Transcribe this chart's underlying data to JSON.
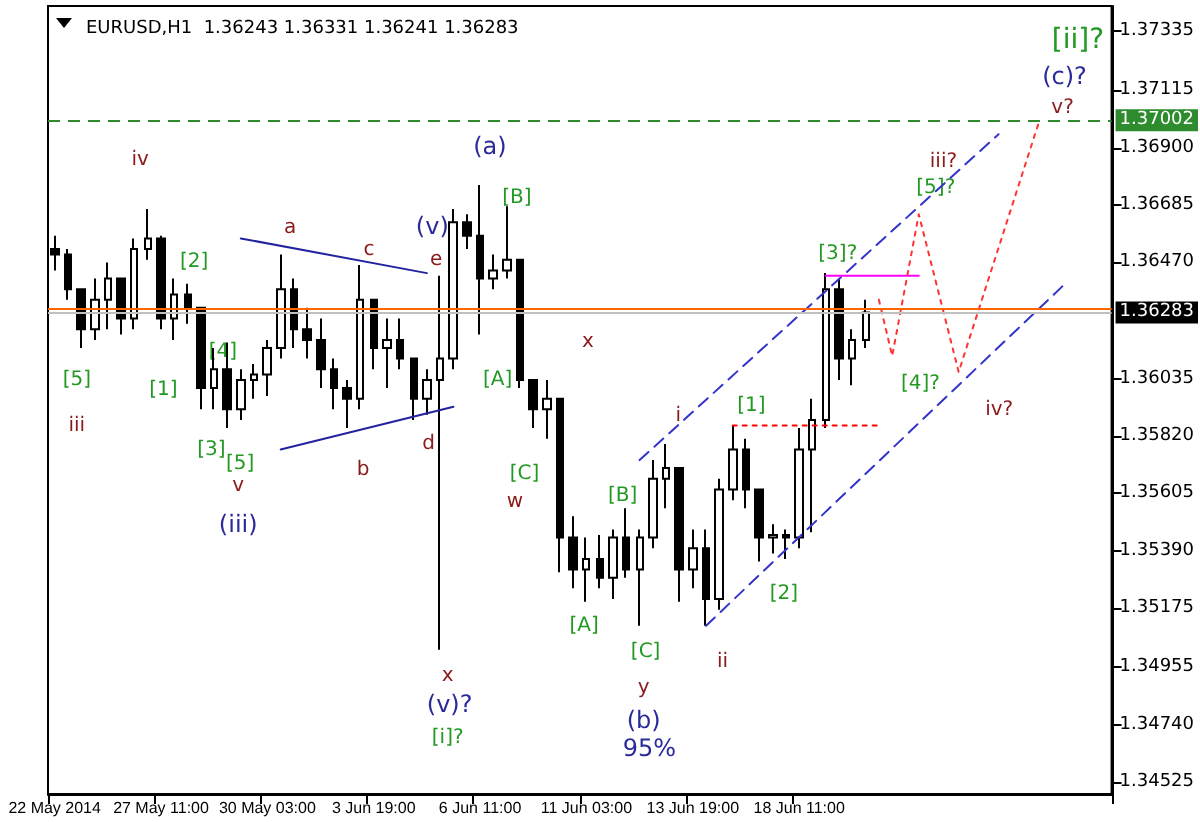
{
  "chart_data": {
    "type": "candlestick",
    "title": "EURUSD,H1  1.36243 1.36331 1.36241 1.36283",
    "categories": [
      "22 May 2014",
      null,
      null,
      null,
      null,
      null,
      null,
      null,
      "27 May 11:00",
      null,
      null,
      null,
      null,
      null,
      null,
      null,
      "30 May 03:00",
      null,
      null,
      null,
      null,
      null,
      null,
      null,
      "3 Jun 19:00",
      null,
      null,
      null,
      null,
      null,
      null,
      null,
      "6 Jun 11:00",
      null,
      null,
      null,
      null,
      null,
      null,
      null,
      "11 Jun 03:00",
      null,
      null,
      null,
      null,
      null,
      null,
      null,
      "13 Jun 19:00",
      null,
      null,
      null,
      null,
      null,
      null,
      null,
      "18 Jun 11:00",
      null,
      null,
      null,
      null,
      null,
      null,
      null,
      null,
      null,
      null,
      null,
      null,
      null,
      null,
      null,
      null,
      null,
      null,
      null,
      null,
      null,
      null,
      null
    ],
    "series": [
      {
        "type": "candlestick",
        "color": "#000000",
        "ohlc": [
          [
            1.3652,
            1.3657,
            1.3644,
            1.365
          ],
          [
            1.365,
            1.3652,
            1.3633,
            1.3637
          ],
          [
            1.3637,
            1.3637,
            1.3615,
            1.3622
          ],
          [
            1.3622,
            1.3641,
            1.3618,
            1.3633
          ],
          [
            1.3633,
            1.3647,
            1.3622,
            1.3641
          ],
          [
            1.3641,
            1.3641,
            1.362,
            1.3626
          ],
          [
            1.3626,
            1.3656,
            1.3622,
            1.3652
          ],
          [
            1.3652,
            1.3667,
            1.3648,
            1.3656
          ],
          [
            1.3656,
            1.3657,
            1.3622,
            1.3626
          ],
          [
            1.3626,
            1.3641,
            1.3618,
            1.3635
          ],
          [
            1.3635,
            1.3639,
            1.3624,
            1.363
          ],
          [
            1.363,
            1.363,
            1.3592,
            1.36
          ],
          [
            1.36,
            1.3615,
            1.3592,
            1.3607
          ],
          [
            1.3607,
            1.3617,
            1.3585,
            1.3592
          ],
          [
            1.3592,
            1.3607,
            1.3588,
            1.3603
          ],
          [
            1.3603,
            1.3609,
            1.3596,
            1.3605
          ],
          [
            1.3605,
            1.3618,
            1.3597,
            1.3615
          ],
          [
            1.3615,
            1.365,
            1.3611,
            1.3637
          ],
          [
            1.3637,
            1.3641,
            1.3615,
            1.3622
          ],
          [
            1.3622,
            1.363,
            1.3611,
            1.3618
          ],
          [
            1.3618,
            1.3626,
            1.36,
            1.3607
          ],
          [
            1.3607,
            1.3611,
            1.3592,
            1.36
          ],
          [
            1.36,
            1.3603,
            1.3585,
            1.3596
          ],
          [
            1.3596,
            1.3646,
            1.3592,
            1.3633
          ],
          [
            1.3633,
            1.3633,
            1.3607,
            1.3615
          ],
          [
            1.3615,
            1.3626,
            1.36,
            1.3618
          ],
          [
            1.3618,
            1.3626,
            1.3607,
            1.3611
          ],
          [
            1.3611,
            1.3611,
            1.3588,
            1.3596
          ],
          [
            1.3596,
            1.3607,
            1.359,
            1.3603
          ],
          [
            1.3603,
            1.3642,
            1.3502,
            1.3611
          ],
          [
            1.3611,
            1.3667,
            1.3607,
            1.3662
          ],
          [
            1.3662,
            1.3665,
            1.3652,
            1.3657
          ],
          [
            1.3657,
            1.3676,
            1.362,
            1.3641
          ],
          [
            1.3641,
            1.365,
            1.3637,
            1.3644
          ],
          [
            1.3644,
            1.3668,
            1.3641,
            1.3648
          ],
          [
            1.3648,
            1.3648,
            1.36,
            1.3603
          ],
          [
            1.3603,
            1.3603,
            1.3585,
            1.3592
          ],
          [
            1.3592,
            1.3603,
            1.3581,
            1.3596
          ],
          [
            1.3596,
            1.3596,
            1.3531,
            1.3544
          ],
          [
            1.3544,
            1.3552,
            1.3525,
            1.3532
          ],
          [
            1.3532,
            1.3544,
            1.352,
            1.3536
          ],
          [
            1.3536,
            1.3545,
            1.3525,
            1.3529
          ],
          [
            1.3529,
            1.3547,
            1.3521,
            1.3544
          ],
          [
            1.3544,
            1.3555,
            1.3529,
            1.3532
          ],
          [
            1.3532,
            1.3547,
            1.3511,
            1.3544
          ],
          [
            1.3544,
            1.3573,
            1.354,
            1.3566
          ],
          [
            1.3566,
            1.3579,
            1.3555,
            1.357
          ],
          [
            1.357,
            1.357,
            1.352,
            1.3532
          ],
          [
            1.3532,
            1.3547,
            1.3525,
            1.354
          ],
          [
            1.354,
            1.3547,
            1.3511,
            1.3521
          ],
          [
            1.3521,
            1.3566,
            1.3517,
            1.3562
          ],
          [
            1.3562,
            1.3586,
            1.3558,
            1.3577
          ],
          [
            1.3577,
            1.3581,
            1.3555,
            1.3562
          ],
          [
            1.3562,
            1.3562,
            1.3535,
            1.3544
          ],
          [
            1.3544,
            1.3549,
            1.3538,
            1.3545
          ],
          [
            1.3545,
            1.3547,
            1.3536,
            1.3544
          ],
          [
            1.3544,
            1.3585,
            1.354,
            1.3577
          ],
          [
            1.3577,
            1.3596,
            1.3546,
            1.3588
          ],
          [
            1.3588,
            1.3643,
            1.3585,
            1.3637
          ],
          [
            1.3637,
            1.3641,
            1.3603,
            1.3611
          ],
          [
            1.3611,
            1.3622,
            1.3601,
            1.3618
          ],
          [
            1.3618,
            1.3633,
            1.3615,
            1.36283
          ],
          null,
          null,
          null,
          null,
          null,
          null,
          null,
          null,
          null,
          null,
          null,
          null,
          null,
          null,
          null,
          null,
          null,
          null
        ]
      },
      {
        "type": "line",
        "color": "#2323a0",
        "line_style": "solid",
        "values": [
          null,
          null,
          null,
          null,
          null,
          null,
          null,
          null,
          null,
          null,
          null,
          null,
          null,
          null,
          1.3656,
          null,
          null,
          null,
          null,
          null,
          null,
          null,
          null,
          null,
          null,
          null,
          null,
          null,
          1.3643,
          null,
          null,
          null,
          null,
          null,
          null,
          null,
          null,
          null,
          null,
          null,
          null,
          null,
          null,
          null,
          null,
          null,
          null,
          null,
          null,
          null,
          null,
          null,
          null,
          null,
          null,
          null,
          null,
          null,
          null,
          null,
          null,
          null,
          null,
          null,
          null,
          null,
          null,
          null,
          null,
          null,
          null,
          null,
          null,
          null,
          null,
          null,
          null,
          null,
          null,
          null
        ]
      },
      {
        "type": "line",
        "color": "#2323a0",
        "line_style": "solid",
        "values": [
          null,
          null,
          null,
          null,
          null,
          null,
          null,
          null,
          null,
          null,
          null,
          null,
          null,
          null,
          null,
          null,
          null,
          1.3577,
          null,
          null,
          null,
          null,
          null,
          null,
          null,
          null,
          null,
          null,
          null,
          null,
          1.3593,
          null,
          null,
          null,
          null,
          null,
          null,
          null,
          null,
          null,
          null,
          null,
          null,
          null,
          null,
          null,
          null,
          null,
          null,
          null,
          null,
          null,
          null,
          null,
          null,
          null,
          null,
          null,
          null,
          null,
          null,
          null,
          null,
          null,
          null,
          null,
          null,
          null,
          null,
          null,
          null,
          null,
          null,
          null,
          null,
          null,
          null,
          null,
          null,
          null
        ]
      },
      {
        "type": "line",
        "color": "#3333cc",
        "line_style": "dashed",
        "values": [
          null,
          null,
          null,
          null,
          null,
          null,
          null,
          null,
          null,
          null,
          null,
          null,
          null,
          null,
          null,
          null,
          null,
          null,
          null,
          null,
          null,
          null,
          null,
          null,
          null,
          null,
          null,
          null,
          null,
          null,
          null,
          null,
          null,
          null,
          null,
          null,
          null,
          null,
          null,
          null,
          null,
          null,
          null,
          null,
          1.3573,
          null,
          null,
          null,
          null,
          null,
          null,
          null,
          null,
          null,
          null,
          null,
          null,
          null,
          null,
          null,
          null,
          null,
          null,
          null,
          null,
          null,
          null,
          null,
          null,
          null,
          null,
          1.3695,
          null,
          null,
          null,
          null,
          null,
          null,
          null,
          null
        ]
      },
      {
        "type": "line",
        "color": "#3333cc",
        "line_style": "dashed",
        "values": [
          null,
          null,
          null,
          null,
          null,
          null,
          null,
          null,
          null,
          null,
          null,
          null,
          null,
          null,
          null,
          null,
          null,
          null,
          null,
          null,
          null,
          null,
          null,
          null,
          null,
          null,
          null,
          null,
          null,
          null,
          null,
          null,
          null,
          null,
          null,
          null,
          null,
          null,
          null,
          null,
          null,
          null,
          null,
          null,
          null,
          null,
          null,
          null,
          null,
          1.3511,
          null,
          null,
          null,
          null,
          null,
          null,
          null,
          null,
          null,
          null,
          null,
          null,
          null,
          null,
          null,
          null,
          null,
          null,
          null,
          null,
          null,
          null,
          null,
          null,
          null,
          null,
          1.3639,
          null,
          null,
          null
        ]
      },
      {
        "type": "line",
        "color": "#ff00ff",
        "line_style": "solid",
        "values": [
          null,
          null,
          null,
          null,
          null,
          null,
          null,
          null,
          null,
          null,
          null,
          null,
          null,
          null,
          null,
          null,
          null,
          null,
          null,
          null,
          null,
          null,
          null,
          null,
          null,
          null,
          null,
          null,
          null,
          null,
          null,
          null,
          null,
          null,
          null,
          null,
          null,
          null,
          null,
          null,
          null,
          null,
          null,
          null,
          null,
          null,
          null,
          null,
          null,
          null,
          null,
          null,
          null,
          null,
          null,
          null,
          null,
          null,
          1.3642,
          null,
          null,
          null,
          null,
          null,
          null,
          1.3642,
          null,
          null,
          null,
          null,
          null,
          null,
          null,
          null,
          null,
          null,
          null,
          null,
          null,
          null
        ]
      },
      {
        "type": "line",
        "color": "#ff0000",
        "line_style": "dotted",
        "values": [
          null,
          null,
          null,
          null,
          null,
          null,
          null,
          null,
          null,
          null,
          null,
          null,
          null,
          null,
          null,
          null,
          null,
          null,
          null,
          null,
          null,
          null,
          null,
          null,
          null,
          null,
          null,
          null,
          null,
          null,
          null,
          null,
          null,
          null,
          null,
          null,
          null,
          null,
          null,
          null,
          null,
          null,
          null,
          null,
          null,
          null,
          null,
          null,
          null,
          null,
          null,
          1.3586,
          null,
          null,
          null,
          null,
          null,
          null,
          null,
          null,
          null,
          null,
          1.3586,
          null,
          null,
          null,
          null,
          null,
          null,
          null,
          null,
          null,
          null,
          null,
          null,
          null,
          null,
          null,
          null,
          null
        ]
      },
      {
        "type": "line",
        "color": "#ff3333",
        "line_style": "dotted",
        "values": [
          null,
          null,
          null,
          null,
          null,
          null,
          null,
          null,
          null,
          null,
          null,
          null,
          null,
          null,
          null,
          null,
          null,
          null,
          null,
          null,
          null,
          null,
          null,
          null,
          null,
          null,
          null,
          null,
          null,
          null,
          null,
          null,
          null,
          null,
          null,
          null,
          null,
          null,
          null,
          null,
          null,
          null,
          null,
          null,
          null,
          null,
          null,
          null,
          null,
          null,
          null,
          null,
          null,
          null,
          null,
          null,
          null,
          null,
          null,
          null,
          null,
          null,
          1.3633,
          1.3612,
          null,
          1.3665,
          null,
          null,
          1.3606,
          null,
          null,
          null,
          null,
          null,
          1.3699,
          null,
          null,
          null,
          null,
          null
        ]
      }
    ],
    "ylim": [
      1.3448,
      1.3743
    ],
    "yticks": [
      1.37335,
      1.37115,
      {
        "value": 1.369,
        "label": "1.36900"
      },
      1.36685,
      {
        "value": 1.3647,
        "label": "1.36470"
      },
      1.36035,
      {
        "value": 1.3582,
        "label": "1.35820"
      },
      1.35605,
      {
        "value": 1.3539,
        "label": "1.35390"
      },
      1.35175,
      1.34955,
      {
        "value": 1.3474,
        "label": "1.34740"
      },
      1.34525
    ],
    "ref_lines": [
      {
        "axis": "y",
        "value": 1.37002,
        "label": "1.37002",
        "color": "#2e8b2e",
        "line_style": "dashed"
      },
      {
        "axis": "y",
        "value": 1.363,
        "label": null,
        "color": "#ff6600",
        "line_style": "solid"
      },
      {
        "axis": "y",
        "value": 1.36283,
        "label": "1.36283",
        "color": "#c0c0c0",
        "line_style": "solid"
      }
    ],
    "annotations": [
      "iv",
      "[2]",
      "[4]",
      "[5]",
      "[1]",
      "iii",
      "[3]",
      "[5]",
      "v",
      "(iii)",
      "a",
      "c",
      "e",
      "(v)",
      "(a)",
      "[B]",
      "[A]",
      "x",
      "b",
      "d",
      "[C]",
      "w",
      "x",
      "(v)?",
      "[i]?",
      "[A]",
      "[B]",
      "[C]",
      "y",
      "(b)",
      "95%",
      "i",
      "ii",
      "[1]",
      "[2]",
      "[3]?",
      "[4]?",
      "iv?",
      "iii?",
      "[5]?",
      "v?",
      "(c)?",
      "[ii]?"
    ]
  }
}
